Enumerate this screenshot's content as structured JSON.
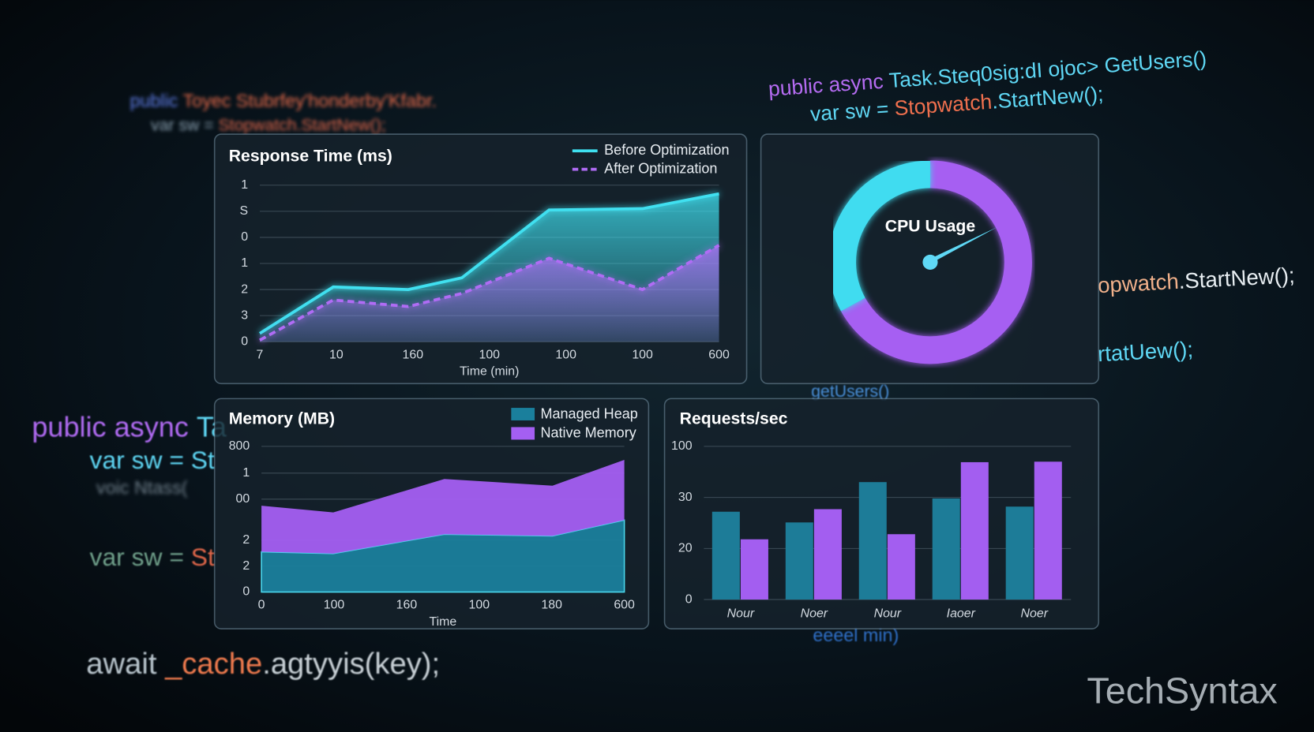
{
  "background_code": [
    [
      "public",
      " Toyec Stubrfey'honderby'Kfabr."
    ],
    [
      "var sw = ",
      "Stopwatch.StartNew();"
    ],
    [
      "public async ",
      "Task.Steq0sig:dI ojoc> GetUsers()"
    ],
    [
      "var sw = ",
      "Stopwatch",
      ".StartNew();"
    ],
    [
      "public async ",
      "Ta"
    ],
    [
      "var sw = St"
    ],
    [
      "voic Ntass("
    ],
    [
      "var sw = ",
      "St"
    ],
    [
      "await ",
      "_cache",
      ".agtyyis(key);"
    ],
    [
      "opwatch",
      ".StartNew();"
    ],
    [
      "rtatUew();"
    ],
    [
      "getUsers()"
    ],
    [
      "eeeel min)"
    ]
  ],
  "watermark": "TechSyntax",
  "chart_data": [
    {
      "type": "line",
      "title": "Response Time (ms)",
      "xlabel": "Time (min)",
      "x": [
        0,
        0.96,
        1.94,
        2.64,
        3.78,
        5.0,
        6.0
      ],
      "xlim": [
        0,
        6
      ],
      "xticks": [
        {
          "value": 0,
          "label": "7"
        },
        {
          "value": 1,
          "label": "10"
        },
        {
          "value": 2,
          "label": "160"
        },
        {
          "value": 3,
          "label": "100"
        },
        {
          "value": 4,
          "label": "100"
        },
        {
          "value": 5,
          "label": "100"
        },
        {
          "value": 6,
          "label": "600"
        }
      ],
      "ylim": [
        0,
        6
      ],
      "yticks": [
        0,
        {
          "value": 1,
          "label": "3"
        },
        {
          "value": 2,
          "label": "2"
        },
        {
          "value": 3,
          "label": "1"
        },
        {
          "value": 4,
          "label": "0"
        },
        {
          "value": 5,
          "label": "S"
        },
        {
          "value": 6,
          "label": "1"
        }
      ],
      "grid": true,
      "legend": "top-right",
      "series": [
        {
          "name": "Before Optimization",
          "color": "#3fe0f0",
          "style": "solid",
          "values": [
            0.32,
            2.1,
            2.0,
            2.45,
            5.05,
            5.1,
            5.67
          ]
        },
        {
          "name": "After Optimization",
          "color": "#b06cf5",
          "style": "dashed",
          "values": [
            0.06,
            1.6,
            1.35,
            1.85,
            3.2,
            2.0,
            3.7
          ]
        }
      ]
    },
    {
      "type": "donut",
      "title": "CPU Usage",
      "values": [
        67,
        33
      ],
      "colors": [
        "#a65ef2",
        "#3fdcf0"
      ]
    },
    {
      "type": "stacked-area",
      "title": "Memory (MB)",
      "xlabel": "Time",
      "x": [
        0,
        99,
        252,
        401,
        500
      ],
      "xlim": [
        0,
        500
      ],
      "xticks": [
        0,
        100,
        {
          "value": 200,
          "label": "160"
        },
        {
          "value": 300,
          "label": "100"
        },
        {
          "value": 400,
          "label": "180"
        },
        {
          "value": 500,
          "label": "600"
        }
      ],
      "ylim": [
        0,
        800
      ],
      "yticks": [
        0,
        {
          "value": 142,
          "label": "2"
        },
        {
          "value": 285,
          "label": "2"
        },
        {
          "value": 510,
          "label": "00"
        },
        {
          "value": 653,
          "label": "1"
        },
        800
      ],
      "grid": true,
      "legend": "top-right",
      "series": [
        {
          "name": "Managed Heap",
          "color": "#1a7f9c",
          "values": [
            221,
            211,
            317,
            308,
            395
          ]
        },
        {
          "name": "Native Memory",
          "color": "#a45ff2",
          "values": [
            253,
            226,
            304,
            276,
            331
          ]
        }
      ]
    },
    {
      "type": "bar",
      "title": "Requests/sec",
      "categories": [
        "Nour",
        "Noer",
        "Nour",
        "Iaoer",
        "Noer"
      ],
      "ylim": [
        0,
        30
      ],
      "yticks": [
        0,
        {
          "value": 10,
          "label": "20"
        },
        {
          "value": 20,
          "label": "30"
        },
        {
          "value": 30,
          "label": "100"
        }
      ],
      "grid": true,
      "series": [
        {
          "color": "#1d7c98",
          "values": [
            17.2,
            15.1,
            23.0,
            19.8,
            18.2
          ]
        },
        {
          "color": "#a35ef0",
          "values": [
            11.8,
            17.7,
            12.8,
            26.9,
            27.0
          ]
        }
      ]
    }
  ]
}
